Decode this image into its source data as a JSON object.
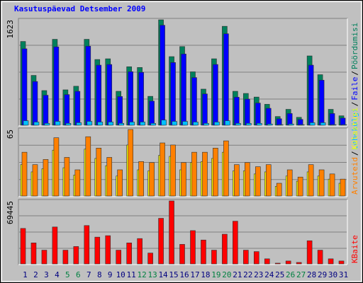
{
  "chart_data": {
    "type": "bar",
    "title": "Kasutuspäevad Detsember 2009",
    "legend_separator": "/",
    "categories": [
      "1",
      "2",
      "3",
      "4",
      "5",
      "6",
      "7",
      "8",
      "9",
      "10",
      "11",
      "12",
      "13",
      "14",
      "15",
      "16",
      "17",
      "18",
      "19",
      "20",
      "21",
      "22",
      "23",
      "24",
      "25",
      "26",
      "27",
      "28",
      "29",
      "30",
      "31"
    ],
    "category_colors": [
      "#000080",
      "#000080",
      "#000080",
      "#000080",
      "#008040",
      "#008040",
      "#000080",
      "#000080",
      "#000080",
      "#000080",
      "#000080",
      "#008040",
      "#008040",
      "#000080",
      "#000080",
      "#000080",
      "#000080",
      "#000080",
      "#008040",
      "#008040",
      "#000080",
      "#000080",
      "#000080",
      "#000080",
      "#000080",
      "#008040",
      "#008040",
      "#000080",
      "#000080",
      "#000080",
      "#000080"
    ],
    "panels": [
      {
        "ylim": [
          0,
          1623
        ],
        "yticks": [
          1623
        ],
        "grid": true,
        "series": [
          {
            "name": "Pöördumisi",
            "color": "#00805c",
            "values": [
              1292,
              773,
              541,
              1325,
              552,
              607,
              1325,
              1016,
              1027,
              530,
              905,
              894,
              453,
              1623,
              1060,
              1214,
              828,
              563,
              1027,
              1524,
              530,
              497,
              442,
              331,
              144,
              254,
              132,
              1071,
              784,
              254,
              155
            ]
          },
          {
            "name": "Faile",
            "color": "#0000ff",
            "values": [
              1180,
              680,
              470,
              1210,
              480,
              530,
              1220,
              930,
              940,
              450,
              830,
              820,
              380,
              1540,
              970,
              1100,
              740,
              490,
              940,
              1410,
              440,
              410,
              350,
              270,
              110,
              190,
              100,
              930,
              700,
              190,
              120
            ]
          },
          {
            "name": "Lehekülgi",
            "color": "#00c0ff",
            "values": [
              80,
              60,
              40,
              70,
              40,
              50,
              70,
              60,
              60,
              40,
              60,
              60,
              40,
              90,
              70,
              70,
              60,
              40,
              60,
              80,
              40,
              40,
              40,
              30,
              20,
              30,
              20,
              50,
              50,
              20,
              20
            ]
          }
        ]
      },
      {
        "ylim": [
          0,
          65
        ],
        "yticks": [
          65
        ],
        "grid": true,
        "series": [
          {
            "name": "Külastusi",
            "color": "#ffff00",
            "values": [
              31,
              24,
              27,
              45,
              28,
              21,
              46,
              37,
              30,
              20,
              50,
              26,
              25,
              40,
              39,
              26,
              33,
              34,
              37,
              43,
              25,
              25,
              22,
              24,
              10,
              20,
              15,
              24,
              20,
              17,
              13
            ]
          },
          {
            "name": "Arvuteid",
            "color": "#ff8000",
            "values": [
              43,
              31,
              36,
              57,
              38,
              26,
              58,
              47,
              38,
              26,
              65,
              34,
              33,
              52,
              50,
              33,
              43,
              43,
              47,
              54,
              31,
              33,
              29,
              31,
              13,
              26,
              19,
              31,
              26,
              22,
              17
            ]
          }
        ]
      },
      {
        "ylim": [
          0,
          69445
        ],
        "yticks": [
          69445
        ],
        "grid": true,
        "series": [
          {
            "name": "KBaite",
            "color": "#ff0000",
            "values": [
              39457,
              23675,
              15783,
              41035,
              15783,
              19729,
              42613,
              29988,
              31566,
              15783,
              23675,
              28410,
              12626,
              50505,
              69445,
              22096,
              37089,
              26831,
              15783,
              33144,
              47349,
              15783,
              14204,
              6313,
              1578,
              3946,
              2367,
              26042,
              15783,
              6313,
              3946
            ]
          }
        ]
      }
    ]
  }
}
